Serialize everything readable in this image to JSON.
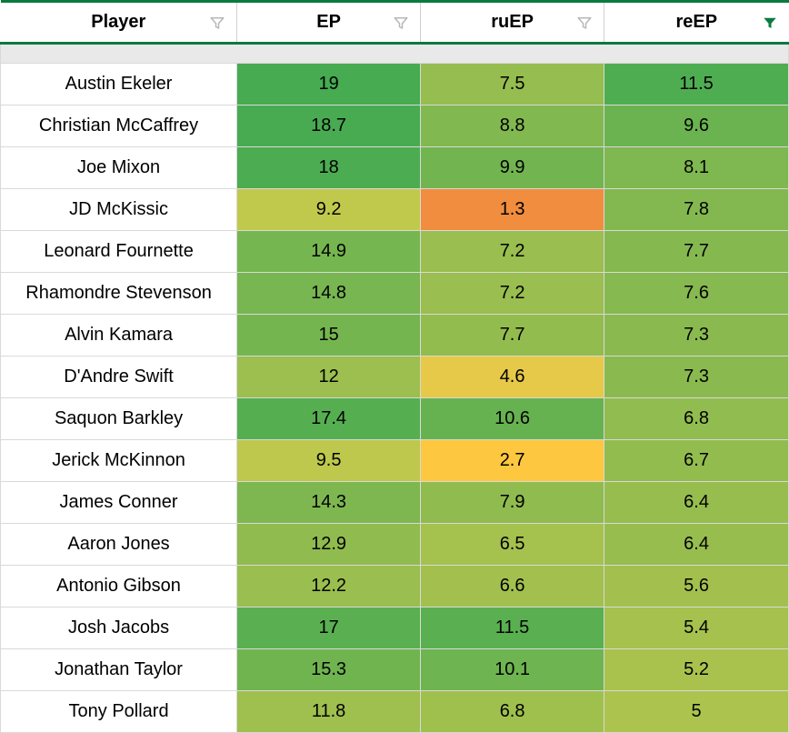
{
  "columns": [
    {
      "key": "player",
      "label": "Player",
      "filter_active": false
    },
    {
      "key": "ep",
      "label": "EP",
      "filter_active": false
    },
    {
      "key": "ruep",
      "label": "ruEP",
      "filter_active": false
    },
    {
      "key": "reep",
      "label": "reEP",
      "filter_active": true
    }
  ],
  "filter_icon_color_inactive": "#b7b7b7",
  "filter_icon_color_active": "#0a7a3f",
  "header_border_color": "#0a7a3f",
  "cell_border_color": "#d9d9d9",
  "background_color": "#ffffff",
  "font_size_header": 20,
  "font_size_cell": 20,
  "rows": [
    {
      "player": "Austin Ekeler",
      "ep": {
        "value": "19",
        "bg": "#46ab51"
      },
      "ruep": {
        "value": "7.5",
        "bg": "#96bd4f"
      },
      "reep": {
        "value": "11.5",
        "bg": "#4fad51"
      }
    },
    {
      "player": "Christian McCaffrey",
      "ep": {
        "value": "18.7",
        "bg": "#48ab51"
      },
      "ruep": {
        "value": "8.8",
        "bg": "#82b850"
      },
      "reep": {
        "value": "9.6",
        "bg": "#6ab350"
      }
    },
    {
      "player": "Joe Mixon",
      "ep": {
        "value": "18",
        "bg": "#4cac51"
      },
      "ruep": {
        "value": "9.9",
        "bg": "#72b550"
      },
      "reep": {
        "value": "8.1",
        "bg": "#7fb750"
      }
    },
    {
      "player": "JD McKissic",
      "ep": {
        "value": "9.2",
        "bg": "#c1c94d"
      },
      "ruep": {
        "value": "1.3",
        "bg": "#f08d3f"
      },
      "reep": {
        "value": "7.8",
        "bg": "#83b850"
      }
    },
    {
      "player": "Leonard Fournette",
      "ep": {
        "value": "14.9",
        "bg": "#76b650"
      },
      "ruep": {
        "value": "7.2",
        "bg": "#9abe4f"
      },
      "reep": {
        "value": "7.7",
        "bg": "#85b950"
      }
    },
    {
      "player": "Rhamondre Stevenson",
      "ep": {
        "value": "14.8",
        "bg": "#77b650"
      },
      "ruep": {
        "value": "7.2",
        "bg": "#9abe4f"
      },
      "reep": {
        "value": "7.6",
        "bg": "#86b950"
      }
    },
    {
      "player": "Alvin Kamara",
      "ep": {
        "value": "15",
        "bg": "#74b550"
      },
      "ruep": {
        "value": "7.7",
        "bg": "#93bc4f"
      },
      "reep": {
        "value": "7.3",
        "bg": "#8aba4f"
      }
    },
    {
      "player": "D'Andre Swift",
      "ep": {
        "value": "12",
        "bg": "#9cbf4f"
      },
      "ruep": {
        "value": "4.6",
        "bg": "#e6c948"
      },
      "reep": {
        "value": "7.3",
        "bg": "#8aba4f"
      }
    },
    {
      "player": "Saquon Barkley",
      "ep": {
        "value": "17.4",
        "bg": "#55af51"
      },
      "ruep": {
        "value": "10.6",
        "bg": "#67b250"
      },
      "reep": {
        "value": "6.8",
        "bg": "#91bc4f"
      }
    },
    {
      "player": "Jerick McKinnon",
      "ep": {
        "value": "9.5",
        "bg": "#bdc84d"
      },
      "ruep": {
        "value": "2.7",
        "bg": "#fdc73f"
      },
      "reep": {
        "value": "6.7",
        "bg": "#93bc4f"
      }
    },
    {
      "player": "James Conner",
      "ep": {
        "value": "14.3",
        "bg": "#7eb750"
      },
      "ruep": {
        "value": "7.9",
        "bg": "#90bb4f"
      },
      "reep": {
        "value": "6.4",
        "bg": "#97bd4f"
      }
    },
    {
      "player": "Aaron Jones",
      "ep": {
        "value": "12.9",
        "bg": "#90bb4f"
      },
      "ruep": {
        "value": "6.5",
        "bg": "#a5c14e"
      },
      "reep": {
        "value": "6.4",
        "bg": "#97bd4f"
      }
    },
    {
      "player": "Antonio Gibson",
      "ep": {
        "value": "12.2",
        "bg": "#9abe4f"
      },
      "ruep": {
        "value": "6.6",
        "bg": "#a3c04e"
      },
      "reep": {
        "value": "5.6",
        "bg": "#a3c04e"
      }
    },
    {
      "player": "Josh Jacobs",
      "ep": {
        "value": "17",
        "bg": "#5ab051"
      },
      "ruep": {
        "value": "11.5",
        "bg": "#5ab051"
      },
      "reep": {
        "value": "5.4",
        "bg": "#a6c14e"
      }
    },
    {
      "player": "Jonathan Taylor",
      "ep": {
        "value": "15.3",
        "bg": "#70b450"
      },
      "ruep": {
        "value": "10.1",
        "bg": "#6eb450"
      },
      "reep": {
        "value": "5.2",
        "bg": "#a9c24e"
      }
    },
    {
      "player": "Tony Pollard",
      "ep": {
        "value": "11.8",
        "bg": "#9fbf4f"
      },
      "ruep": {
        "value": "6.8",
        "bg": "#a0c04e"
      },
      "reep": {
        "value": "5",
        "bg": "#acc34e"
      }
    }
  ]
}
